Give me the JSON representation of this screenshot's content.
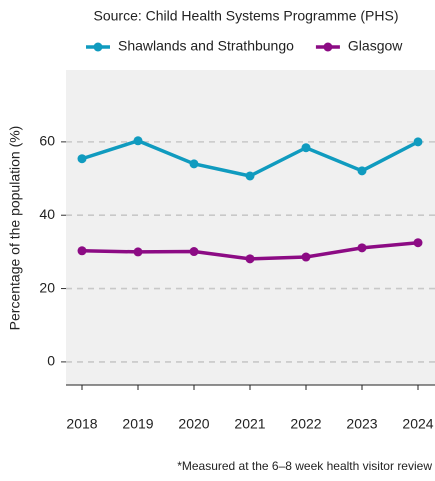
{
  "chart_data": {
    "type": "line",
    "title": "Source: Child Health Systems Programme (PHS)",
    "y_label": "Percentage of the population (%)",
    "caption": "*Measured at the 6–8 week health visitor review",
    "categories": [
      "2018",
      "2019",
      "2020",
      "2021",
      "2022",
      "2023",
      "2024"
    ],
    "series": [
      {
        "name": "Shawlands and Strathbungo",
        "color": "#109bbf",
        "values": [
          55.4,
          60.3,
          54.0,
          50.7,
          58.4,
          52.1,
          60.0
        ]
      },
      {
        "name": "Glasgow",
        "color": "#8c0b84",
        "values": [
          30.3,
          30.0,
          30.1,
          28.1,
          28.6,
          31.1,
          32.5
        ]
      }
    ],
    "ylim": [
      -6.3,
      79.6
    ],
    "yticks": [
      0,
      20,
      40,
      60
    ],
    "grid": true,
    "legend": "top"
  }
}
